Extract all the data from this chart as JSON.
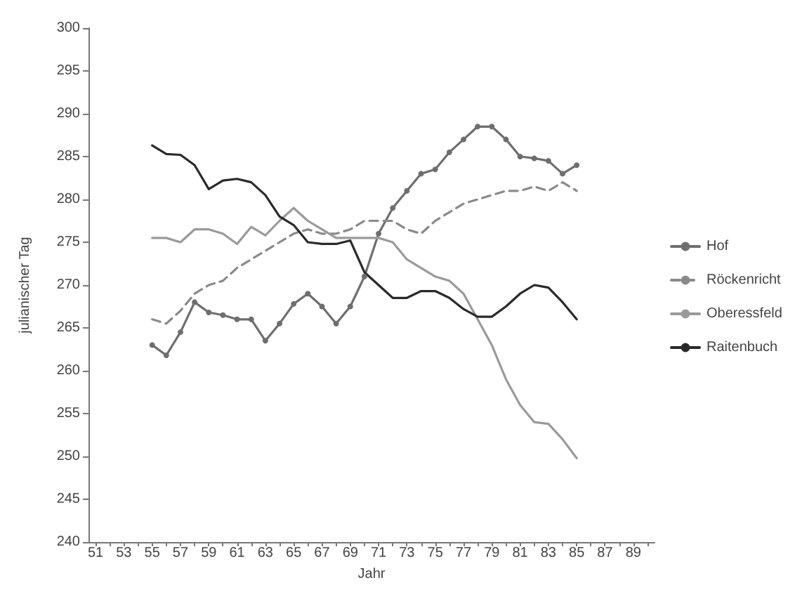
{
  "chart_data": {
    "type": "line",
    "xlabel": "Jahr",
    "ylabel": "julianischer Tag",
    "x": [
      55,
      56,
      57,
      58,
      59,
      60,
      61,
      62,
      63,
      64,
      65,
      66,
      67,
      68,
      69,
      70,
      71,
      72,
      73,
      74,
      75,
      76,
      77,
      78,
      79,
      80,
      81,
      82,
      83,
      84,
      85
    ],
    "series": [
      {
        "name": "Hof",
        "color": "#6e6e6e",
        "marker": "circle",
        "line_style": "solid",
        "values": [
          263,
          261.8,
          264.5,
          268,
          266.8,
          266.5,
          266,
          266,
          263.5,
          265.5,
          267.8,
          269,
          267.5,
          265.5,
          267.5,
          271,
          276,
          279,
          281,
          283,
          283.5,
          285.5,
          287,
          288.5,
          288.5,
          287,
          285,
          284.8,
          284.5,
          283,
          284
        ]
      },
      {
        "name": "Röckenricht",
        "color": "#8a8a8a",
        "marker": "none",
        "line_style": "dashed",
        "values": [
          266,
          265.5,
          267,
          269,
          270,
          270.5,
          272,
          273,
          274,
          275,
          276,
          276.5,
          276,
          276,
          276.5,
          277.5,
          277.5,
          277.5,
          276.5,
          276,
          277.5,
          278.5,
          279.5,
          280,
          280.5,
          281,
          281,
          281.5,
          281,
          282,
          281
        ]
      },
      {
        "name": "Oberessfeld",
        "color": "#9a9a9a",
        "marker": "none",
        "line_style": "solid",
        "values": [
          275.5,
          275.5,
          275,
          276.5,
          276.5,
          276,
          274.8,
          276.8,
          275.8,
          277.5,
          279,
          277.5,
          276.5,
          275.5,
          275.5,
          275.5,
          275.5,
          275,
          273,
          272,
          271,
          270.5,
          269,
          266,
          263,
          259,
          256,
          254,
          253.8,
          252,
          249.8
        ]
      },
      {
        "name": "Raitenbuch",
        "color": "#2a2a2a",
        "marker": "none",
        "line_style": "solid",
        "values": [
          286.3,
          285.3,
          285.2,
          284,
          281.2,
          282.2,
          282.4,
          282,
          280.5,
          278,
          277,
          275,
          274.8,
          274.8,
          275.2,
          271.5,
          270,
          268.5,
          268.5,
          269.3,
          269.3,
          268.5,
          267.2,
          266.3,
          266.3,
          267.5,
          269,
          270,
          269.7,
          268,
          266
        ]
      }
    ],
    "xlim": [
      50.5,
      90.5
    ],
    "xticks": [
      51,
      {
        "value": 52,
        "label": null
      },
      53,
      {
        "value": 54,
        "label": null
      },
      55,
      {
        "value": 56,
        "label": null
      },
      57,
      {
        "value": 58,
        "label": null
      },
      59,
      {
        "value": 60,
        "label": null
      },
      61,
      {
        "value": 62,
        "label": null
      },
      63,
      {
        "value": 64,
        "label": null
      },
      65,
      {
        "value": 66,
        "label": null
      },
      67,
      {
        "value": 68,
        "label": null
      },
      69,
      {
        "value": 70,
        "label": null
      },
      71,
      {
        "value": 72,
        "label": null
      },
      73,
      {
        "value": 74,
        "label": null
      },
      75,
      {
        "value": 76,
        "label": null
      },
      77,
      {
        "value": 78,
        "label": null
      },
      79,
      {
        "value": 80,
        "label": null
      },
      81,
      {
        "value": 82,
        "label": null
      },
      83,
      {
        "value": 84,
        "label": null
      },
      85,
      {
        "value": 86,
        "label": null
      },
      87,
      {
        "value": 88,
        "label": null
      },
      89,
      {
        "value": 90,
        "label": null
      }
    ],
    "ylim": [
      240,
      300
    ],
    "yticks": [
      240,
      245,
      250,
      255,
      260,
      265,
      270,
      275,
      280,
      285,
      290,
      295,
      300
    ],
    "grid": false,
    "legend": "right"
  }
}
